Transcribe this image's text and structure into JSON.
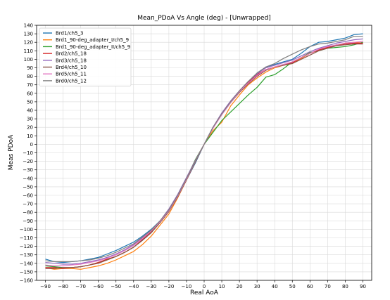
{
  "chart_data": {
    "type": "line",
    "title": "Mean_PDoA Vs Angle (deg)  - [Unwrapped]",
    "xlabel": "Real AoA",
    "ylabel": "Meas PDoA",
    "xlim": [
      -95,
      95
    ],
    "ylim": [
      -160,
      140
    ],
    "xticks": [
      -90,
      -80,
      -70,
      -60,
      -50,
      -40,
      -30,
      -20,
      -10,
      0,
      10,
      20,
      30,
      40,
      50,
      60,
      70,
      80,
      90
    ],
    "yticks": [
      -160,
      -150,
      -140,
      -130,
      -120,
      -110,
      -100,
      -90,
      -80,
      -70,
      -60,
      -50,
      -40,
      -30,
      -20,
      -10,
      0,
      10,
      20,
      30,
      40,
      50,
      60,
      70,
      80,
      90,
      100,
      110,
      120,
      130,
      140
    ],
    "grid": true,
    "legend_position": "top-left",
    "x": [
      -90,
      -85,
      -80,
      -75,
      -70,
      -65,
      -60,
      -55,
      -50,
      -45,
      -40,
      -35,
      -30,
      -25,
      -20,
      -15,
      -10,
      -5,
      0,
      5,
      10,
      15,
      20,
      25,
      30,
      35,
      40,
      45,
      50,
      55,
      60,
      65,
      70,
      75,
      80,
      85,
      90
    ],
    "series": [
      {
        "name": "Brd1/ch5_3",
        "color": "#1f77b4",
        "values": [
          -135,
          -138,
          -139,
          -138,
          -137,
          -135,
          -133,
          -129,
          -125,
          -120,
          -115,
          -108,
          -100,
          -90,
          -78,
          -62,
          -42,
          -22,
          0,
          20,
          35,
          50,
          62,
          73,
          83,
          91,
          94,
          97,
          100,
          107,
          115,
          120,
          121,
          123,
          125,
          129,
          130
        ]
      },
      {
        "name": "Brd1_90-deg_adapter_I/ch5_9",
        "color": "#ff7f0e",
        "values": [
          -145,
          -147,
          -146,
          -146,
          -147,
          -145,
          -143,
          -140,
          -136,
          -131,
          -126,
          -118,
          -108,
          -95,
          -82,
          -63,
          -42,
          -20,
          0,
          16,
          26,
          45,
          58,
          70,
          78,
          85,
          90,
          93,
          95,
          101,
          107,
          111,
          114,
          116,
          119,
          120,
          119
        ]
      },
      {
        "name": "Brd1_90-deg_adapter_II/ch5_9",
        "color": "#2ca02c",
        "values": [
          -143,
          -144,
          -145,
          -145,
          -144,
          -142,
          -139,
          -136,
          -132,
          -127,
          -121,
          -113,
          -104,
          -92,
          -79,
          -60,
          -40,
          -18,
          0,
          14,
          28,
          38,
          48,
          58,
          67,
          79,
          82,
          89,
          97,
          102,
          108,
          110,
          113,
          114,
          115,
          117,
          120
        ]
      },
      {
        "name": "Brd2/ch5_18",
        "color": "#d62728",
        "values": [
          -145,
          -145,
          -146,
          -145,
          -144,
          -142,
          -139,
          -135,
          -132,
          -127,
          -121,
          -112,
          -103,
          -92,
          -79,
          -61,
          -40,
          -19,
          0,
          19,
          36,
          50,
          63,
          73,
          82,
          88,
          91,
          94,
          96,
          102,
          107,
          111,
          114,
          117,
          118,
          119,
          119
        ]
      },
      {
        "name": "Brd3/ch5_18",
        "color": "#9467bd",
        "values": [
          -139,
          -140,
          -141,
          -141,
          -140,
          -138,
          -136,
          -133,
          -129,
          -124,
          -118,
          -110,
          -101,
          -90,
          -76,
          -59,
          -39,
          -19,
          0,
          20,
          37,
          51,
          63,
          74,
          83,
          90,
          93,
          96,
          99,
          104,
          109,
          113,
          116,
          119,
          121,
          123,
          124
        ]
      },
      {
        "name": "Brd4/ch5_10",
        "color": "#8c564b",
        "values": [
          -146,
          -146,
          -145,
          -145,
          -144,
          -142,
          -140,
          -136,
          -132,
          -127,
          -121,
          -113,
          -104,
          -92,
          -79,
          -62,
          -42,
          -21,
          0,
          19,
          35,
          49,
          61,
          71,
          80,
          87,
          91,
          93,
          95,
          100,
          105,
          110,
          113,
          116,
          117,
          118,
          118
        ]
      },
      {
        "name": "Brd5/ch5_11",
        "color": "#e377c2",
        "values": [
          -142,
          -143,
          -143,
          -142,
          -141,
          -139,
          -137,
          -134,
          -130,
          -125,
          -119,
          -111,
          -102,
          -91,
          -78,
          -61,
          -41,
          -20,
          0,
          19,
          35,
          49,
          62,
          72,
          81,
          88,
          91,
          94,
          97,
          102,
          107,
          112,
          115,
          117,
          119,
          120,
          121
        ]
      },
      {
        "name": "Brd0/ch5_12",
        "color": "#7f7f7f",
        "values": [
          -137,
          -138,
          -138,
          -138,
          -137,
          -136,
          -134,
          -131,
          -127,
          -122,
          -117,
          -109,
          -101,
          -90,
          -77,
          -60,
          -40,
          -20,
          0,
          20,
          36,
          50,
          63,
          74,
          84,
          91,
          95,
          101,
          106,
          111,
          115,
          118,
          119,
          121,
          123,
          127,
          127
        ]
      }
    ]
  }
}
